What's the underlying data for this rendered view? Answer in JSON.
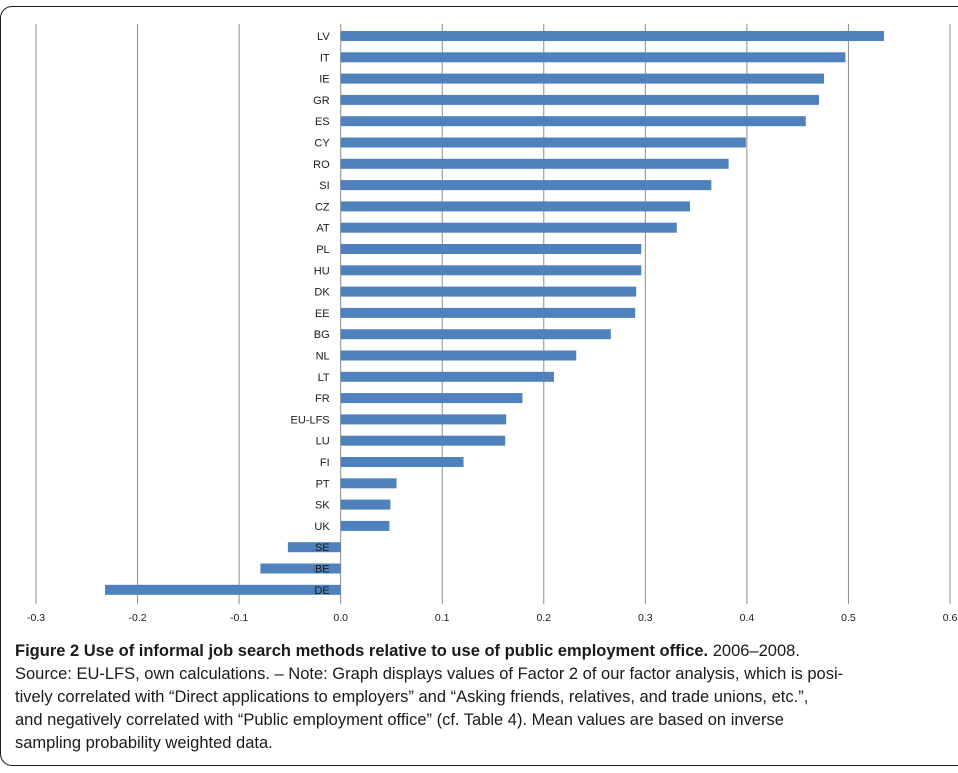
{
  "chart_data": {
    "type": "bar",
    "orientation": "horizontal",
    "categories": [
      "LV",
      "IT",
      "IE",
      "GR",
      "ES",
      "CY",
      "RO",
      "SI",
      "CZ",
      "AT",
      "PL",
      "HU",
      "DK",
      "EE",
      "BG",
      "NL",
      "LT",
      "FR",
      "EU-LFS",
      "LU",
      "FI",
      "PT",
      "SK",
      "UK",
      "SE",
      "BE",
      "DE"
    ],
    "values": [
      0.535,
      0.497,
      0.476,
      0.471,
      0.458,
      0.399,
      0.382,
      0.365,
      0.344,
      0.331,
      0.296,
      0.296,
      0.291,
      0.29,
      0.266,
      0.232,
      0.21,
      0.179,
      0.163,
      0.162,
      0.121,
      0.055,
      0.049,
      0.048,
      -0.052,
      -0.079,
      -0.232
    ],
    "xlim": [
      -0.3,
      0.6
    ],
    "ticks": [
      "-0.3",
      "-0.2",
      "-0.1",
      "0.0",
      "0.1",
      "0.2",
      "0.3",
      "0.4",
      "0.5",
      "0.6"
    ],
    "grid": "vertical",
    "bar_color": "#4f81bd",
    "title": "",
    "xlabel": "",
    "ylabel": ""
  },
  "caption": {
    "title": "Figure 2 Use of informal job search methods relative to use of public employment office.",
    "years": " 2006–2008.",
    "lines": [
      "Source: EU-LFS, own calculations. – Note: Graph displays values of Factor 2 of our factor analysis, which is posi-",
      "tively correlated with “Direct applications to employers” and “Asking friends, relatives, and trade unions, etc.”,",
      "and negatively correlated with “Public employment office” (cf. Table 4). Mean values are based on inverse",
      "sampling probability weighted data."
    ]
  }
}
